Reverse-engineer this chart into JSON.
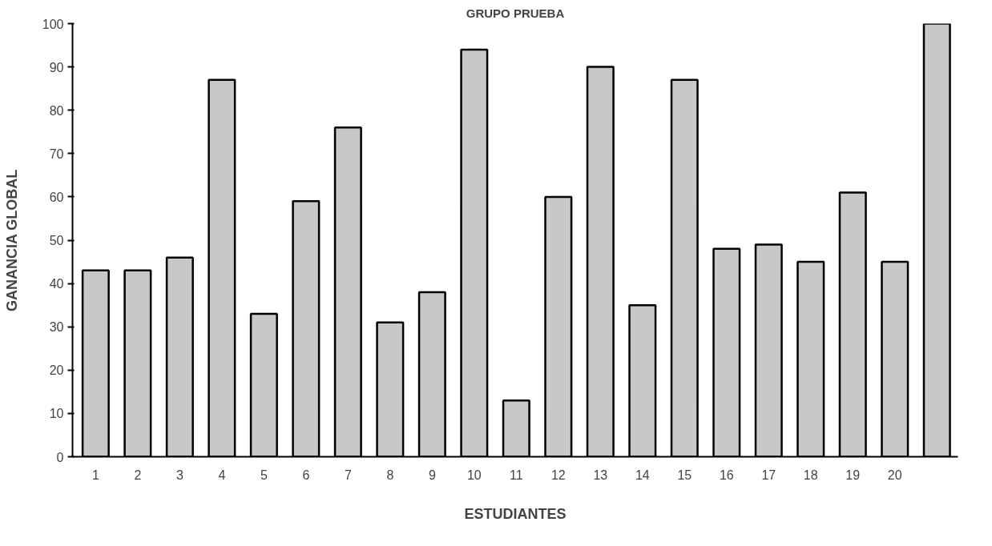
{
  "chart_data": {
    "type": "bar",
    "title": "GRUPO PRUEBA",
    "xlabel": "ESTUDIANTES",
    "ylabel": "GANANCIA GLOBAL",
    "categories": [
      "1",
      "2",
      "3",
      "4",
      "5",
      "6",
      "7",
      "8",
      "9",
      "10",
      "11",
      "12",
      "13",
      "14",
      "15",
      "16",
      "17",
      "18",
      "19",
      "20",
      null
    ],
    "values": [
      43,
      43,
      46,
      87,
      33,
      59,
      76,
      31,
      38,
      94,
      13,
      60,
      90,
      35,
      87,
      48,
      49,
      45,
      61,
      45,
      100
    ],
    "color": "#c8c8c8",
    "ylim": [
      0,
      100
    ],
    "yticks": [
      0,
      10,
      20,
      30,
      40,
      50,
      60,
      70,
      80,
      90,
      100
    ],
    "grid": false
  }
}
